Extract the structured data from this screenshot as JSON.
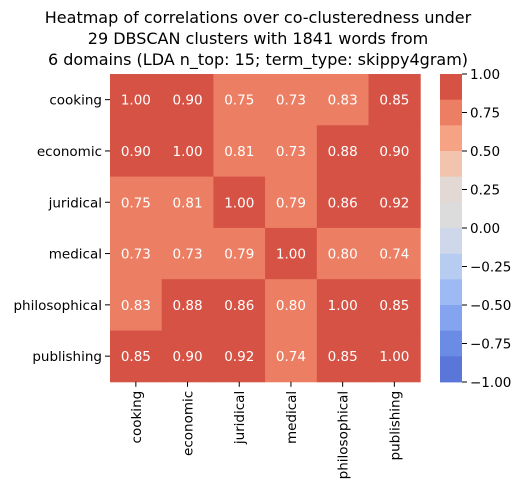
{
  "chart_data": {
    "type": "heatmap",
    "title": [
      "Heatmap of correlations over co-clusteredness under",
      "29 DBSCAN clusters with 1841 words from",
      "6 domains (LDA n_top: 15; term_type: skippy4gram)"
    ],
    "rows": [
      "cooking",
      "economic",
      "juridical",
      "medical",
      "philosophical",
      "publishing"
    ],
    "columns": [
      "cooking",
      "economic",
      "juridical",
      "medical",
      "philosophical",
      "publishing"
    ],
    "values": [
      [
        1.0,
        0.9,
        0.75,
        0.73,
        0.83,
        0.85
      ],
      [
        0.9,
        1.0,
        0.81,
        0.73,
        0.88,
        0.9
      ],
      [
        0.75,
        0.81,
        1.0,
        0.79,
        0.86,
        0.92
      ],
      [
        0.73,
        0.73,
        0.79,
        1.0,
        0.8,
        0.74
      ],
      [
        0.83,
        0.88,
        0.86,
        0.8,
        1.0,
        0.85
      ],
      [
        0.85,
        0.9,
        0.92,
        0.74,
        0.85,
        1.0
      ]
    ],
    "value_labels": [
      [
        "1.00",
        "0.90",
        "0.75",
        "0.73",
        "0.83",
        "0.85"
      ],
      [
        "0.90",
        "1.00",
        "0.81",
        "0.73",
        "0.88",
        "0.90"
      ],
      [
        "0.75",
        "0.81",
        "1.00",
        "0.79",
        "0.86",
        "0.92"
      ],
      [
        "0.73",
        "0.73",
        "0.79",
        "1.00",
        "0.80",
        "0.74"
      ],
      [
        "0.83",
        "0.88",
        "0.86",
        "0.80",
        "1.00",
        "0.85"
      ],
      [
        "0.85",
        "0.90",
        "0.92",
        "0.74",
        "0.85",
        "1.00"
      ]
    ],
    "colorbar": {
      "range": [
        -1.0,
        1.0
      ],
      "tick_values": [
        1.0,
        0.75,
        0.5,
        0.25,
        0.0,
        -0.25,
        -0.5,
        -0.75,
        -1.0
      ],
      "tick_labels": [
        "1.00",
        "0.75",
        "0.50",
        "0.25",
        "0.00",
        "−0.25",
        "−0.50",
        "−0.75",
        "−1.00"
      ],
      "bands": [
        {
          "from": 0.8333,
          "to": 1.0,
          "color": "#d65244"
        },
        {
          "from": 0.6667,
          "to": 0.8333,
          "color": "#ec7f63"
        },
        {
          "from": 0.5,
          "to": 0.6667,
          "color": "#f6a385"
        },
        {
          "from": 0.3333,
          "to": 0.5,
          "color": "#f2c4ad"
        },
        {
          "from": 0.1667,
          "to": 0.3333,
          "color": "#e2d9d4"
        },
        {
          "from": 0.0,
          "to": 0.1667,
          "color": "#dddcdc"
        },
        {
          "from": -0.1667,
          "to": 0.0,
          "color": "#cfd8ea"
        },
        {
          "from": -0.3333,
          "to": -0.1667,
          "color": "#b6ccf1"
        },
        {
          "from": -0.5,
          "to": -0.3333,
          "color": "#9ebaf5"
        },
        {
          "from": -0.6667,
          "to": -0.5,
          "color": "#84a4f0"
        },
        {
          "from": -0.8333,
          "to": -0.6667,
          "color": "#6b8ce5"
        },
        {
          "from": -1.0,
          "to": -0.8333,
          "color": "#5a76d8"
        }
      ]
    },
    "annotation_color": "#ffffff",
    "grid": false
  }
}
